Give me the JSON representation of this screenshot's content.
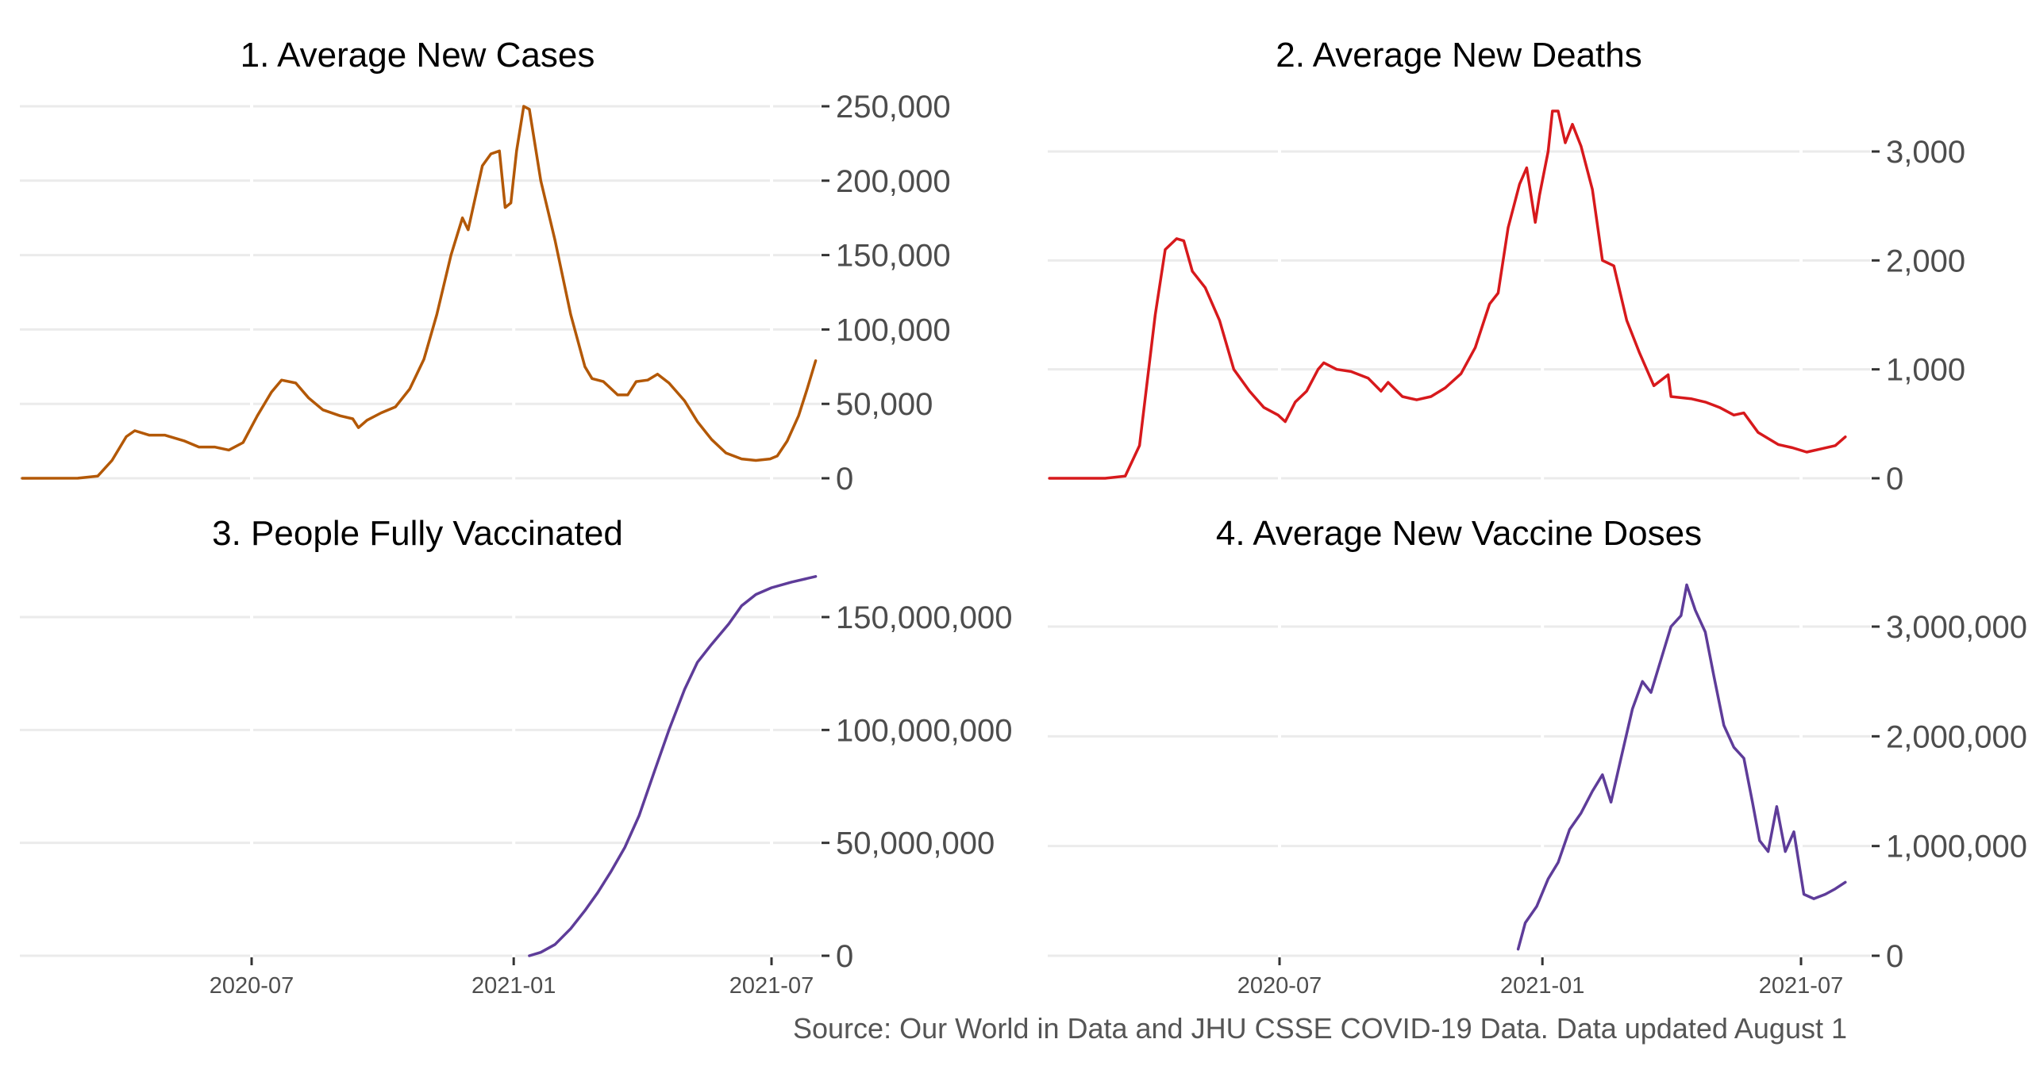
{
  "source_note": "Source: Our World in Data and JHU CSSE COVID-19 Data. Data updated August 1",
  "chart_data": [
    {
      "type": "line",
      "title": "1. Average New Cases",
      "color": "#b35806",
      "xlabel": "",
      "ylabel": "",
      "x_range": [
        "2020-01-22",
        "2021-08-01"
      ],
      "ylim": [
        0,
        250000
      ],
      "yticks": [
        0,
        50000,
        100000,
        150000,
        200000,
        250000
      ],
      "yticklabels": [
        "0",
        "50,000",
        "100,000",
        "150,000",
        "200,000",
        "250,000"
      ],
      "xticks": [],
      "x_axis_labels_shown": false,
      "grid": true,
      "points": [
        [
          "2020-01-22",
          0
        ],
        [
          "2020-03-01",
          30
        ],
        [
          "2020-03-15",
          1500
        ],
        [
          "2020-03-25",
          12000
        ],
        [
          "2020-04-04",
          28000
        ],
        [
          "2020-04-10",
          32000
        ],
        [
          "2020-04-20",
          29000
        ],
        [
          "2020-05-01",
          29000
        ],
        [
          "2020-05-15",
          25000
        ],
        [
          "2020-05-25",
          21000
        ],
        [
          "2020-06-05",
          21000
        ],
        [
          "2020-06-15",
          19000
        ],
        [
          "2020-06-25",
          24000
        ],
        [
          "2020-07-05",
          42000
        ],
        [
          "2020-07-15",
          58000
        ],
        [
          "2020-07-22",
          66000
        ],
        [
          "2020-08-01",
          64000
        ],
        [
          "2020-08-10",
          54000
        ],
        [
          "2020-08-20",
          46000
        ],
        [
          "2020-09-01",
          42000
        ],
        [
          "2020-09-10",
          40000
        ],
        [
          "2020-09-14",
          34000
        ],
        [
          "2020-09-20",
          39000
        ],
        [
          "2020-09-30",
          44000
        ],
        [
          "2020-10-10",
          48000
        ],
        [
          "2020-10-20",
          60000
        ],
        [
          "2020-10-30",
          80000
        ],
        [
          "2020-11-08",
          110000
        ],
        [
          "2020-11-18",
          150000
        ],
        [
          "2020-11-26",
          175000
        ],
        [
          "2020-11-30",
          167000
        ],
        [
          "2020-12-03",
          180000
        ],
        [
          "2020-12-10",
          210000
        ],
        [
          "2020-12-16",
          218000
        ],
        [
          "2020-12-22",
          220000
        ],
        [
          "2020-12-26",
          182000
        ],
        [
          "2020-12-30",
          185000
        ],
        [
          "2021-01-03",
          220000
        ],
        [
          "2021-01-08",
          250000
        ],
        [
          "2021-01-12",
          248000
        ],
        [
          "2021-01-20",
          200000
        ],
        [
          "2021-01-30",
          160000
        ],
        [
          "2021-02-10",
          110000
        ],
        [
          "2021-02-20",
          75000
        ],
        [
          "2021-02-25",
          67000
        ],
        [
          "2021-03-05",
          65000
        ],
        [
          "2021-03-15",
          56000
        ],
        [
          "2021-03-22",
          56000
        ],
        [
          "2021-03-28",
          65000
        ],
        [
          "2021-04-05",
          66000
        ],
        [
          "2021-04-12",
          70000
        ],
        [
          "2021-04-20",
          64000
        ],
        [
          "2021-05-01",
          52000
        ],
        [
          "2021-05-10",
          38000
        ],
        [
          "2021-05-20",
          26000
        ],
        [
          "2021-05-30",
          17000
        ],
        [
          "2021-06-10",
          13000
        ],
        [
          "2021-06-20",
          12000
        ],
        [
          "2021-06-30",
          13000
        ],
        [
          "2021-07-05",
          15000
        ],
        [
          "2021-07-12",
          25000
        ],
        [
          "2021-07-20",
          42000
        ],
        [
          "2021-07-26",
          60000
        ],
        [
          "2021-08-01",
          79000
        ]
      ]
    },
    {
      "type": "line",
      "title": "2. Average New Deaths",
      "color": "#d7191c",
      "xlabel": "",
      "ylabel": "",
      "x_range": [
        "2020-01-22",
        "2021-08-01"
      ],
      "ylim": [
        0,
        3000
      ],
      "yticks": [
        0,
        1000,
        2000,
        3000
      ],
      "yticklabels": [
        "0",
        "1,000",
        "2,000",
        "3,000"
      ],
      "xticks": [],
      "x_axis_labels_shown": false,
      "grid": true,
      "points": [
        [
          "2020-01-22",
          0
        ],
        [
          "2020-03-01",
          0
        ],
        [
          "2020-03-15",
          20
        ],
        [
          "2020-03-25",
          300
        ],
        [
          "2020-04-05",
          1500
        ],
        [
          "2020-04-12",
          2100
        ],
        [
          "2020-04-20",
          2200
        ],
        [
          "2020-04-25",
          2180
        ],
        [
          "2020-05-01",
          1900
        ],
        [
          "2020-05-10",
          1750
        ],
        [
          "2020-05-20",
          1450
        ],
        [
          "2020-05-30",
          1000
        ],
        [
          "2020-06-10",
          800
        ],
        [
          "2020-06-20",
          650
        ],
        [
          "2020-06-30",
          580
        ],
        [
          "2020-07-05",
          520
        ],
        [
          "2020-07-12",
          700
        ],
        [
          "2020-07-20",
          800
        ],
        [
          "2020-07-28",
          1000
        ],
        [
          "2020-08-01",
          1060
        ],
        [
          "2020-08-10",
          1000
        ],
        [
          "2020-08-20",
          980
        ],
        [
          "2020-09-01",
          920
        ],
        [
          "2020-09-10",
          800
        ],
        [
          "2020-09-15",
          880
        ],
        [
          "2020-09-25",
          750
        ],
        [
          "2020-10-05",
          720
        ],
        [
          "2020-10-15",
          750
        ],
        [
          "2020-10-25",
          830
        ],
        [
          "2020-11-05",
          960
        ],
        [
          "2020-11-15",
          1200
        ],
        [
          "2020-11-25",
          1600
        ],
        [
          "2020-12-01",
          1700
        ],
        [
          "2020-12-08",
          2300
        ],
        [
          "2020-12-16",
          2700
        ],
        [
          "2020-12-21",
          2850
        ],
        [
          "2020-12-27",
          2350
        ],
        [
          "2020-12-30",
          2600
        ],
        [
          "2021-01-05",
          3000
        ],
        [
          "2021-01-08",
          3420
        ],
        [
          "2021-01-12",
          3380
        ],
        [
          "2021-01-17",
          3080
        ],
        [
          "2021-01-22",
          3250
        ],
        [
          "2021-01-28",
          3050
        ],
        [
          "2021-02-05",
          2650
        ],
        [
          "2021-02-12",
          2000
        ],
        [
          "2021-02-20",
          1950
        ],
        [
          "2021-03-01",
          1450
        ],
        [
          "2021-03-10",
          1150
        ],
        [
          "2021-03-20",
          850
        ],
        [
          "2021-03-30",
          950
        ],
        [
          "2021-04-01",
          750
        ],
        [
          "2021-04-15",
          730
        ],
        [
          "2021-04-25",
          700
        ],
        [
          "2021-05-05",
          650
        ],
        [
          "2021-05-15",
          580
        ],
        [
          "2021-05-22",
          600
        ],
        [
          "2021-06-01",
          420
        ],
        [
          "2021-06-15",
          310
        ],
        [
          "2021-06-25",
          280
        ],
        [
          "2021-07-05",
          240
        ],
        [
          "2021-07-15",
          270
        ],
        [
          "2021-07-25",
          300
        ],
        [
          "2021-08-01",
          380
        ]
      ]
    },
    {
      "type": "line",
      "title": "3. People Fully Vaccinated",
      "color": "#5e3c99",
      "xlabel": "",
      "ylabel": "",
      "x_range": [
        "2020-01-22",
        "2021-08-01"
      ],
      "ylim": [
        0,
        150000000
      ],
      "yticks": [
        0,
        50000000,
        100000000,
        150000000
      ],
      "yticklabels": [
        "0",
        "50,000,000",
        "100,000,000",
        "150,000,000"
      ],
      "xticks": [
        "2020-07-01",
        "2021-01-01",
        "2021-07-01"
      ],
      "xticklabels": [
        "2020-07",
        "2021-01",
        "2021-07"
      ],
      "grid": true,
      "points": [
        [
          "2021-01-12",
          0
        ],
        [
          "2021-01-20",
          1500000
        ],
        [
          "2021-01-30",
          5000000
        ],
        [
          "2021-02-10",
          12000000
        ],
        [
          "2021-02-20",
          20000000
        ],
        [
          "2021-03-01",
          28000000
        ],
        [
          "2021-03-10",
          37000000
        ],
        [
          "2021-03-20",
          48000000
        ],
        [
          "2021-03-30",
          62000000
        ],
        [
          "2021-04-10",
          82000000
        ],
        [
          "2021-04-20",
          100000000
        ],
        [
          "2021-05-01",
          118000000
        ],
        [
          "2021-05-10",
          130000000
        ],
        [
          "2021-05-20",
          138000000
        ],
        [
          "2021-06-01",
          147000000
        ],
        [
          "2021-06-10",
          155000000
        ],
        [
          "2021-06-20",
          160000000
        ],
        [
          "2021-07-01",
          163000000
        ],
        [
          "2021-07-15",
          165500000
        ],
        [
          "2021-08-01",
          168000000
        ]
      ]
    },
    {
      "type": "line",
      "title": "4. Average New Vaccine Doses",
      "color": "#5e3c99",
      "xlabel": "",
      "ylabel": "",
      "x_range": [
        "2020-01-22",
        "2021-08-01"
      ],
      "ylim": [
        0,
        3000000
      ],
      "yticks": [
        0,
        1000000,
        2000000,
        3000000
      ],
      "yticklabels": [
        "0",
        "1,000,000",
        "2,000,000",
        "3,000,000"
      ],
      "xticks": [
        "2020-07-01",
        "2021-01-01",
        "2021-07-01"
      ],
      "xticklabels": [
        "2020-07",
        "2021-01",
        "2021-07"
      ],
      "grid": true,
      "points": [
        [
          "2020-12-15",
          60000
        ],
        [
          "2020-12-20",
          300000
        ],
        [
          "2020-12-28",
          450000
        ],
        [
          "2021-01-05",
          700000
        ],
        [
          "2021-01-12",
          850000
        ],
        [
          "2021-01-20",
          1150000
        ],
        [
          "2021-01-28",
          1300000
        ],
        [
          "2021-02-05",
          1500000
        ],
        [
          "2021-02-12",
          1650000
        ],
        [
          "2021-02-18",
          1400000
        ],
        [
          "2021-02-25",
          1800000
        ],
        [
          "2021-03-05",
          2250000
        ],
        [
          "2021-03-12",
          2500000
        ],
        [
          "2021-03-18",
          2400000
        ],
        [
          "2021-03-25",
          2700000
        ],
        [
          "2021-04-01",
          3000000
        ],
        [
          "2021-04-08",
          3100000
        ],
        [
          "2021-04-12",
          3380000
        ],
        [
          "2021-04-18",
          3150000
        ],
        [
          "2021-04-25",
          2950000
        ],
        [
          "2021-05-01",
          2550000
        ],
        [
          "2021-05-08",
          2100000
        ],
        [
          "2021-05-15",
          1900000
        ],
        [
          "2021-05-22",
          1800000
        ],
        [
          "2021-05-28",
          1400000
        ],
        [
          "2021-06-02",
          1050000
        ],
        [
          "2021-06-08",
          950000
        ],
        [
          "2021-06-14",
          1360000
        ],
        [
          "2021-06-20",
          950000
        ],
        [
          "2021-06-26",
          1130000
        ],
        [
          "2021-07-03",
          560000
        ],
        [
          "2021-07-10",
          520000
        ],
        [
          "2021-07-18",
          560000
        ],
        [
          "2021-07-25",
          610000
        ],
        [
          "2021-08-01",
          670000
        ]
      ]
    }
  ]
}
